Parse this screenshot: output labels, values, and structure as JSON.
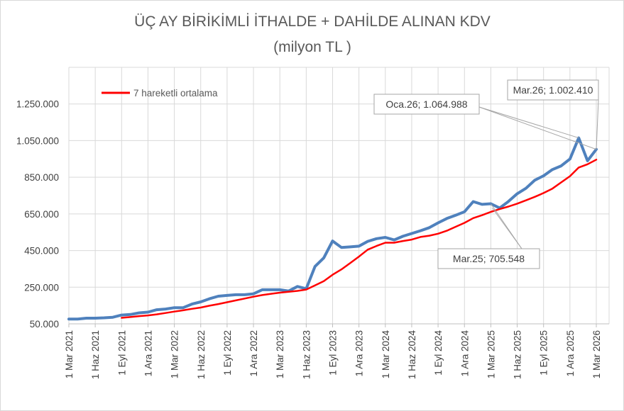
{
  "chart_data": {
    "type": "line",
    "title": "ÜÇ AY BİRİKİMLİ İTHALDE + DAHİLDE ALINAN KDV",
    "subtitle": "(milyon TL )",
    "xlabel": "",
    "ylabel": "",
    "ylim": [
      50000,
      1450000
    ],
    "yticks": [
      {
        "value": 50000,
        "label": "50.000"
      },
      {
        "value": 250000,
        "label": "250.000"
      },
      {
        "value": 450000,
        "label": "450.000"
      },
      {
        "value": 650000,
        "label": "650.000"
      },
      {
        "value": 850000,
        "label": "850.000"
      },
      {
        "value": 1050000,
        "label": "1.050.000"
      },
      {
        "value": 1250000,
        "label": "1.250.000"
      }
    ],
    "x_start": "2021-03",
    "x_end": "2026-03",
    "xticks": [
      {
        "month": "2021-03",
        "label": "1 Mar 2021"
      },
      {
        "month": "2021-06",
        "label": "1 Haz 2021"
      },
      {
        "month": "2021-09",
        "label": "1 Eyl 2021"
      },
      {
        "month": "2021-12",
        "label": "1 Ara 2021"
      },
      {
        "month": "2022-03",
        "label": "1 Mar 2022"
      },
      {
        "month": "2022-06",
        "label": "1 Haz 2022"
      },
      {
        "month": "2022-09",
        "label": "1 Eyl 2022"
      },
      {
        "month": "2022-12",
        "label": "1 Ara 2022"
      },
      {
        "month": "2023-03",
        "label": "1 Mar 2023"
      },
      {
        "month": "2023-06",
        "label": "1 Haz 2023"
      },
      {
        "month": "2023-09",
        "label": "1 Eyl 2023"
      },
      {
        "month": "2023-12",
        "label": "1 Ara 2023"
      },
      {
        "month": "2024-03",
        "label": "1 Mar 2024"
      },
      {
        "month": "2024-06",
        "label": "1 Haz 2024"
      },
      {
        "month": "2024-09",
        "label": "1 Eyl 2024"
      },
      {
        "month": "2024-12",
        "label": "1 Ara 2024"
      },
      {
        "month": "2025-03",
        "label": "1 Mar 2025"
      },
      {
        "month": "2025-06",
        "label": "1 Haz 2025"
      },
      {
        "month": "2025-09",
        "label": "1 Eyl 2025"
      },
      {
        "month": "2025-12",
        "label": "1 Ara 2025"
      },
      {
        "month": "2026-03",
        "label": "1 Mar 2026"
      }
    ],
    "grid": true,
    "legend": {
      "placement": "top-left"
    },
    "series": [
      {
        "name": "",
        "color": "#4f81bd",
        "values": [
          {
            "month": "2021-03",
            "value": 76000
          },
          {
            "month": "2021-04",
            "value": 76000
          },
          {
            "month": "2021-05",
            "value": 81000
          },
          {
            "month": "2021-06",
            "value": 81000
          },
          {
            "month": "2021-07",
            "value": 83000
          },
          {
            "month": "2021-08",
            "value": 86000
          },
          {
            "month": "2021-09",
            "value": 98000
          },
          {
            "month": "2021-10",
            "value": 101000
          },
          {
            "month": "2021-11",
            "value": 110000
          },
          {
            "month": "2021-12",
            "value": 114000
          },
          {
            "month": "2022-01",
            "value": 127000
          },
          {
            "month": "2022-02",
            "value": 131000
          },
          {
            "month": "2022-03",
            "value": 138000
          },
          {
            "month": "2022-04",
            "value": 138000
          },
          {
            "month": "2022-05",
            "value": 158000
          },
          {
            "month": "2022-06",
            "value": 170000
          },
          {
            "month": "2022-07",
            "value": 187000
          },
          {
            "month": "2022-08",
            "value": 201000
          },
          {
            "month": "2022-09",
            "value": 205000
          },
          {
            "month": "2022-10",
            "value": 209000
          },
          {
            "month": "2022-11",
            "value": 209000
          },
          {
            "month": "2022-12",
            "value": 214000
          },
          {
            "month": "2023-01",
            "value": 236000
          },
          {
            "month": "2023-02",
            "value": 236000
          },
          {
            "month": "2023-03",
            "value": 236000
          },
          {
            "month": "2023-04",
            "value": 229000
          },
          {
            "month": "2023-05",
            "value": 254000
          },
          {
            "month": "2023-06",
            "value": 242000
          },
          {
            "month": "2023-07",
            "value": 363000
          },
          {
            "month": "2023-08",
            "value": 410000
          },
          {
            "month": "2023-09",
            "value": 502000
          },
          {
            "month": "2023-10",
            "value": 467000
          },
          {
            "month": "2023-11",
            "value": 470000
          },
          {
            "month": "2023-12",
            "value": 474000
          },
          {
            "month": "2024-01",
            "value": 500000
          },
          {
            "month": "2024-02",
            "value": 515000
          },
          {
            "month": "2024-03",
            "value": 522000
          },
          {
            "month": "2024-04",
            "value": 508000
          },
          {
            "month": "2024-05",
            "value": 528000
          },
          {
            "month": "2024-06",
            "value": 543000
          },
          {
            "month": "2024-07",
            "value": 558000
          },
          {
            "month": "2024-08",
            "value": 575000
          },
          {
            "month": "2024-09",
            "value": 601000
          },
          {
            "month": "2024-10",
            "value": 625000
          },
          {
            "month": "2024-11",
            "value": 643000
          },
          {
            "month": "2024-12",
            "value": 662000
          },
          {
            "month": "2025-01",
            "value": 717000
          },
          {
            "month": "2025-02",
            "value": 702000
          },
          {
            "month": "2025-03",
            "value": 705548
          },
          {
            "month": "2025-04",
            "value": 682000
          },
          {
            "month": "2025-05",
            "value": 718000
          },
          {
            "month": "2025-06",
            "value": 760000
          },
          {
            "month": "2025-07",
            "value": 790000
          },
          {
            "month": "2025-08",
            "value": 834000
          },
          {
            "month": "2025-09",
            "value": 858000
          },
          {
            "month": "2025-10",
            "value": 892000
          },
          {
            "month": "2025-11",
            "value": 912000
          },
          {
            "month": "2025-12",
            "value": 950000
          },
          {
            "month": "2026-01",
            "value": 1064988
          },
          {
            "month": "2026-02",
            "value": 940000
          },
          {
            "month": "2026-03",
            "value": 1002410
          }
        ]
      },
      {
        "name": "7 hareketli ortalama",
        "color": "#ff0000",
        "values": [
          {
            "month": "2021-09",
            "value": 83000
          },
          {
            "month": "2021-10",
            "value": 87000
          },
          {
            "month": "2021-11",
            "value": 92000
          },
          {
            "month": "2021-12",
            "value": 96000
          },
          {
            "month": "2022-01",
            "value": 102000
          },
          {
            "month": "2022-02",
            "value": 109000
          },
          {
            "month": "2022-03",
            "value": 117000
          },
          {
            "month": "2022-04",
            "value": 124000
          },
          {
            "month": "2022-05",
            "value": 132000
          },
          {
            "month": "2022-06",
            "value": 139000
          },
          {
            "month": "2022-07",
            "value": 149000
          },
          {
            "month": "2022-08",
            "value": 158000
          },
          {
            "month": "2022-09",
            "value": 168000
          },
          {
            "month": "2022-10",
            "value": 178000
          },
          {
            "month": "2022-11",
            "value": 188000
          },
          {
            "month": "2022-12",
            "value": 198000
          },
          {
            "month": "2023-01",
            "value": 207000
          },
          {
            "month": "2023-02",
            "value": 214000
          },
          {
            "month": "2023-03",
            "value": 220000
          },
          {
            "month": "2023-04",
            "value": 225000
          },
          {
            "month": "2023-05",
            "value": 230000
          },
          {
            "month": "2023-06",
            "value": 237000
          },
          {
            "month": "2023-07",
            "value": 260000
          },
          {
            "month": "2023-08",
            "value": 283000
          },
          {
            "month": "2023-09",
            "value": 318000
          },
          {
            "month": "2023-10",
            "value": 347000
          },
          {
            "month": "2023-11",
            "value": 382000
          },
          {
            "month": "2023-12",
            "value": 417000
          },
          {
            "month": "2024-01",
            "value": 455000
          },
          {
            "month": "2024-02",
            "value": 475000
          },
          {
            "month": "2024-03",
            "value": 493000
          },
          {
            "month": "2024-04",
            "value": 493000
          },
          {
            "month": "2024-05",
            "value": 502000
          },
          {
            "month": "2024-06",
            "value": 510000
          },
          {
            "month": "2024-07",
            "value": 524000
          },
          {
            "month": "2024-08",
            "value": 531000
          },
          {
            "month": "2024-09",
            "value": 542000
          },
          {
            "month": "2024-10",
            "value": 558000
          },
          {
            "month": "2024-11",
            "value": 580000
          },
          {
            "month": "2024-12",
            "value": 601000
          },
          {
            "month": "2025-01",
            "value": 627000
          },
          {
            "month": "2025-02",
            "value": 643000
          },
          {
            "month": "2025-03",
            "value": 661000
          },
          {
            "month": "2025-04",
            "value": 676000
          },
          {
            "month": "2025-05",
            "value": 690000
          },
          {
            "month": "2025-06",
            "value": 706000
          },
          {
            "month": "2025-07",
            "value": 724000
          },
          {
            "month": "2025-08",
            "value": 743000
          },
          {
            "month": "2025-09",
            "value": 764000
          },
          {
            "month": "2025-10",
            "value": 788000
          },
          {
            "month": "2025-11",
            "value": 822000
          },
          {
            "month": "2025-12",
            "value": 856000
          },
          {
            "month": "2026-01",
            "value": 903000
          },
          {
            "month": "2026-02",
            "value": 921000
          },
          {
            "month": "2026-03",
            "value": 946000
          }
        ]
      }
    ],
    "annotations": [
      {
        "text": "Mar.26; 1.002.410",
        "month": "2026-03",
        "value": 1002410
      },
      {
        "text": "Oca.26; 1.064.988",
        "month": "2026-01",
        "value": 1064988
      },
      {
        "text": "Mar.25; 705.548",
        "month": "2025-03",
        "value": 705548
      }
    ]
  }
}
